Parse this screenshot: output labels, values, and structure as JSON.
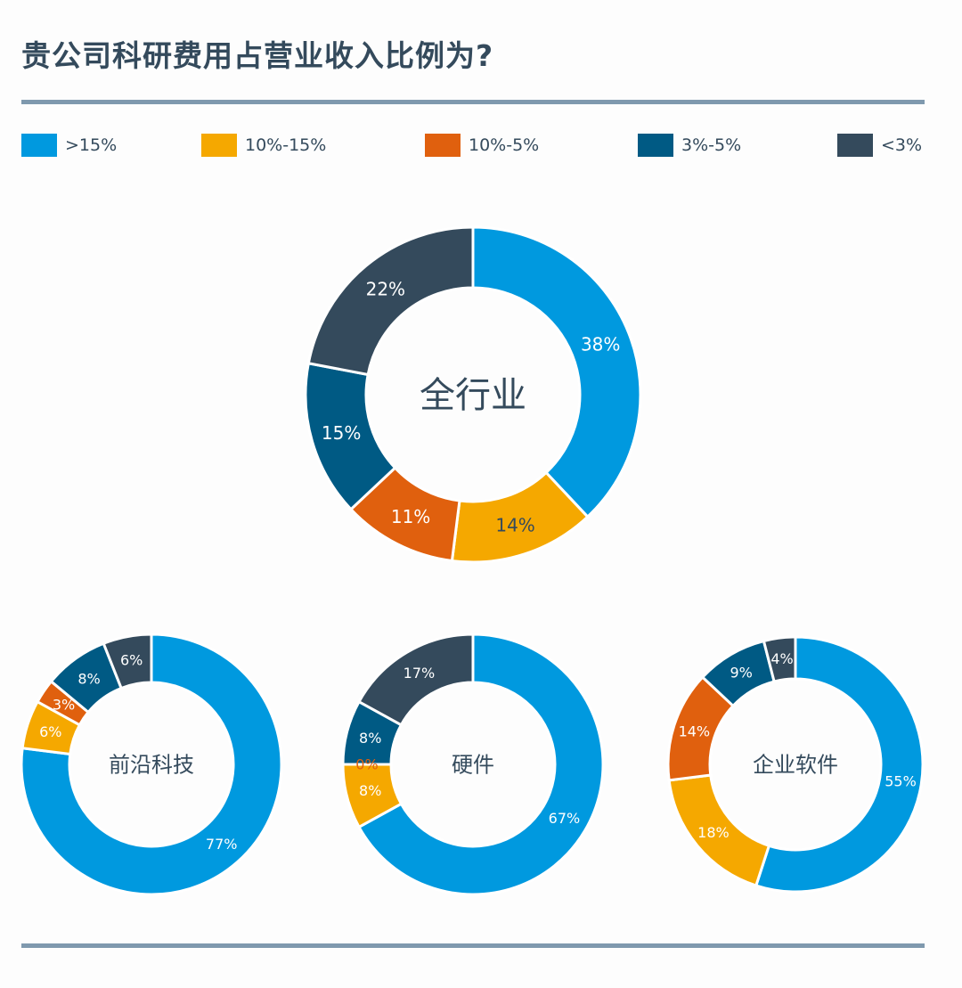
{
  "title": "贵公司科研费用占营业收入比例为?",
  "chart_data": [
    {
      "type": "pie",
      "variant": "donut",
      "center_label": "全行业",
      "categories": [
        ">15%",
        "10%-15%",
        "10%-5%",
        "3%-5%",
        "<3%"
      ],
      "values": [
        38,
        14,
        11,
        15,
        22
      ],
      "labels": [
        "38%",
        "14%",
        "11%",
        "15%",
        "22%"
      ]
    },
    {
      "type": "pie",
      "variant": "donut",
      "center_label": "前沿科技",
      "categories": [
        ">15%",
        "10%-15%",
        "10%-5%",
        "3%-5%",
        "<3%"
      ],
      "values": [
        77,
        6,
        3,
        8,
        6
      ],
      "labels": [
        "77%",
        "6%",
        "3%",
        "8%",
        "6%"
      ]
    },
    {
      "type": "pie",
      "variant": "donut",
      "center_label": "硬件",
      "categories": [
        ">15%",
        "10%-15%",
        "10%-5%",
        "3%-5%",
        "<3%"
      ],
      "values": [
        67,
        8,
        0,
        8,
        17
      ],
      "labels": [
        "67%",
        "8%",
        "0%",
        "8%",
        "17%"
      ]
    },
    {
      "type": "pie",
      "variant": "donut",
      "center_label": "企业软件",
      "categories": [
        ">15%",
        "10%-15%",
        "10%-5%",
        "3%-5%",
        "<3%"
      ],
      "values": [
        55,
        18,
        14,
        9,
        4
      ],
      "labels": [
        "55%",
        "18%",
        "14%",
        "9%",
        "4%"
      ]
    }
  ],
  "legend": {
    "placement": "top",
    "items": [
      {
        "label": ">15%",
        "color": "#0099DF"
      },
      {
        "label": "10%-15%",
        "color": "#F5A800"
      },
      {
        "label": "10%-5%",
        "color": "#E0600E"
      },
      {
        "label": "3%-5%",
        "color": "#005A84"
      },
      {
        "label": "<3%",
        "color": "#344A5C"
      }
    ]
  }
}
